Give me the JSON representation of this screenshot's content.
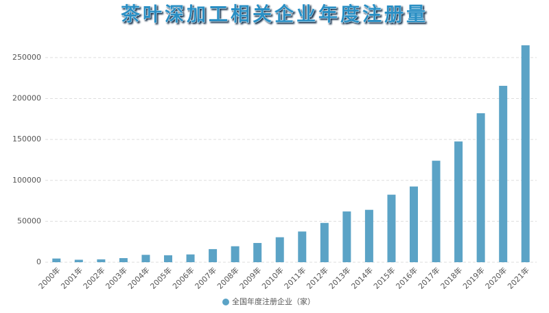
{
  "chart_data": {
    "type": "bar",
    "title": "茶叶深加工相关企业年度注册量",
    "categories": [
      "2000年",
      "2001年",
      "2002年",
      "2003年",
      "2004年",
      "2005年",
      "2006年",
      "2007年",
      "2008年",
      "2009年",
      "2010年",
      "2011年",
      "2012年",
      "2013年",
      "2014年",
      "2015年",
      "2016年",
      "2017年",
      "2018年",
      "2019年",
      "2020年",
      "2021年"
    ],
    "series": [
      {
        "name": "全国年度注册企业（家）",
        "color": "#5ba3c6",
        "values": [
          4500,
          3000,
          3500,
          5000,
          9000,
          8500,
          9500,
          16000,
          19500,
          23500,
          30500,
          37500,
          48000,
          62000,
          64000,
          82500,
          92500,
          124000,
          147500,
          182000,
          215500,
          265000
        ]
      }
    ],
    "ylim": [
      0,
      265000
    ],
    "yticks": [
      0,
      50000,
      100000,
      150000,
      200000,
      250000
    ],
    "grid": true
  }
}
